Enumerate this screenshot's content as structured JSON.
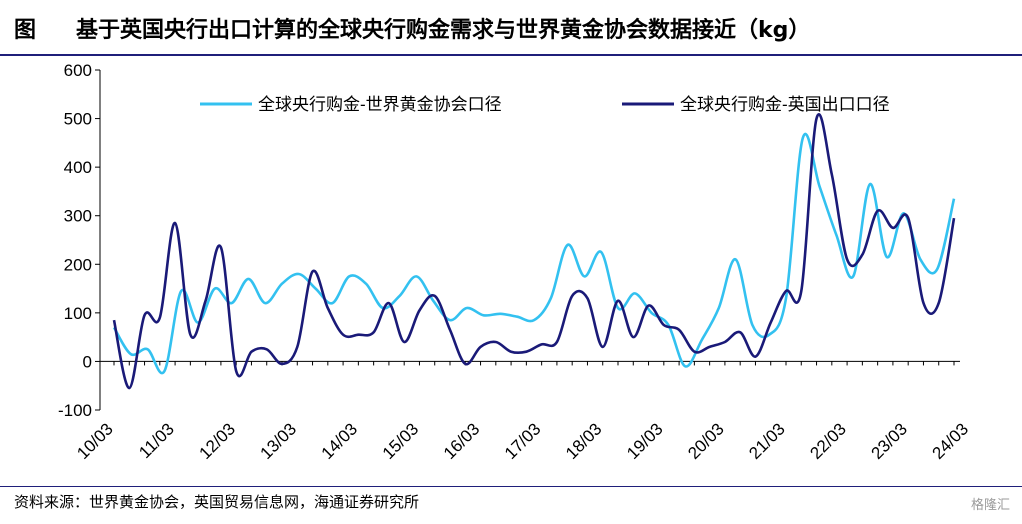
{
  "figure": {
    "label": "图",
    "title": "基于英国央行出口计算的全球央行购金需求与世界黄金协会数据接近（kg）",
    "source": "资料来源：世界黄金协会，英国贸易信息网，海通证券研究所",
    "watermark": "格隆汇"
  },
  "chart_data": {
    "type": "line",
    "title": "基于英国央行出口计算的全球央行购金需求与世界黄金协会数据接近（kg）",
    "ylim": [
      -100,
      600
    ],
    "yticks": [
      -100,
      0,
      100,
      200,
      300,
      400,
      500,
      600
    ],
    "x_tick_labels": [
      "10/03",
      "11/03",
      "12/03",
      "13/03",
      "14/03",
      "15/03",
      "16/03",
      "17/03",
      "18/03",
      "19/03",
      "20/03",
      "21/03",
      "22/03",
      "23/03",
      "24/03"
    ],
    "x_tick_index": [
      0,
      4,
      8,
      12,
      16,
      20,
      24,
      28,
      32,
      36,
      40,
      44,
      48,
      52,
      56
    ],
    "grid": false,
    "legend": "top",
    "series": [
      {
        "name": "全球央行购金-世界黄金协会口径",
        "color": "#33c1f0",
        "values": [
          70,
          15,
          25,
          -20,
          145,
          80,
          150,
          120,
          170,
          120,
          160,
          180,
          150,
          120,
          175,
          160,
          110,
          135,
          175,
          125,
          85,
          110,
          95,
          98,
          92,
          85,
          130,
          240,
          175,
          225,
          110,
          140,
          100,
          75,
          -10,
          45,
          110,
          210,
          75,
          55,
          130,
          460,
          360,
          260,
          175,
          365,
          215,
          305,
          210,
          190,
          335
        ]
      },
      {
        "name": "全球央行购金-英国出口口径",
        "color": "#1a1a78",
        "values": [
          85,
          -55,
          95,
          90,
          285,
          55,
          125,
          235,
          -20,
          20,
          25,
          -5,
          30,
          185,
          110,
          55,
          55,
          60,
          120,
          40,
          105,
          135,
          65,
          -5,
          30,
          40,
          20,
          20,
          35,
          40,
          135,
          130,
          30,
          125,
          50,
          115,
          75,
          65,
          20,
          30,
          40,
          60,
          10,
          80,
          145,
          145,
          500,
          385,
          210,
          220,
          310,
          275,
          295,
          120,
          120,
          295
        ]
      }
    ]
  }
}
